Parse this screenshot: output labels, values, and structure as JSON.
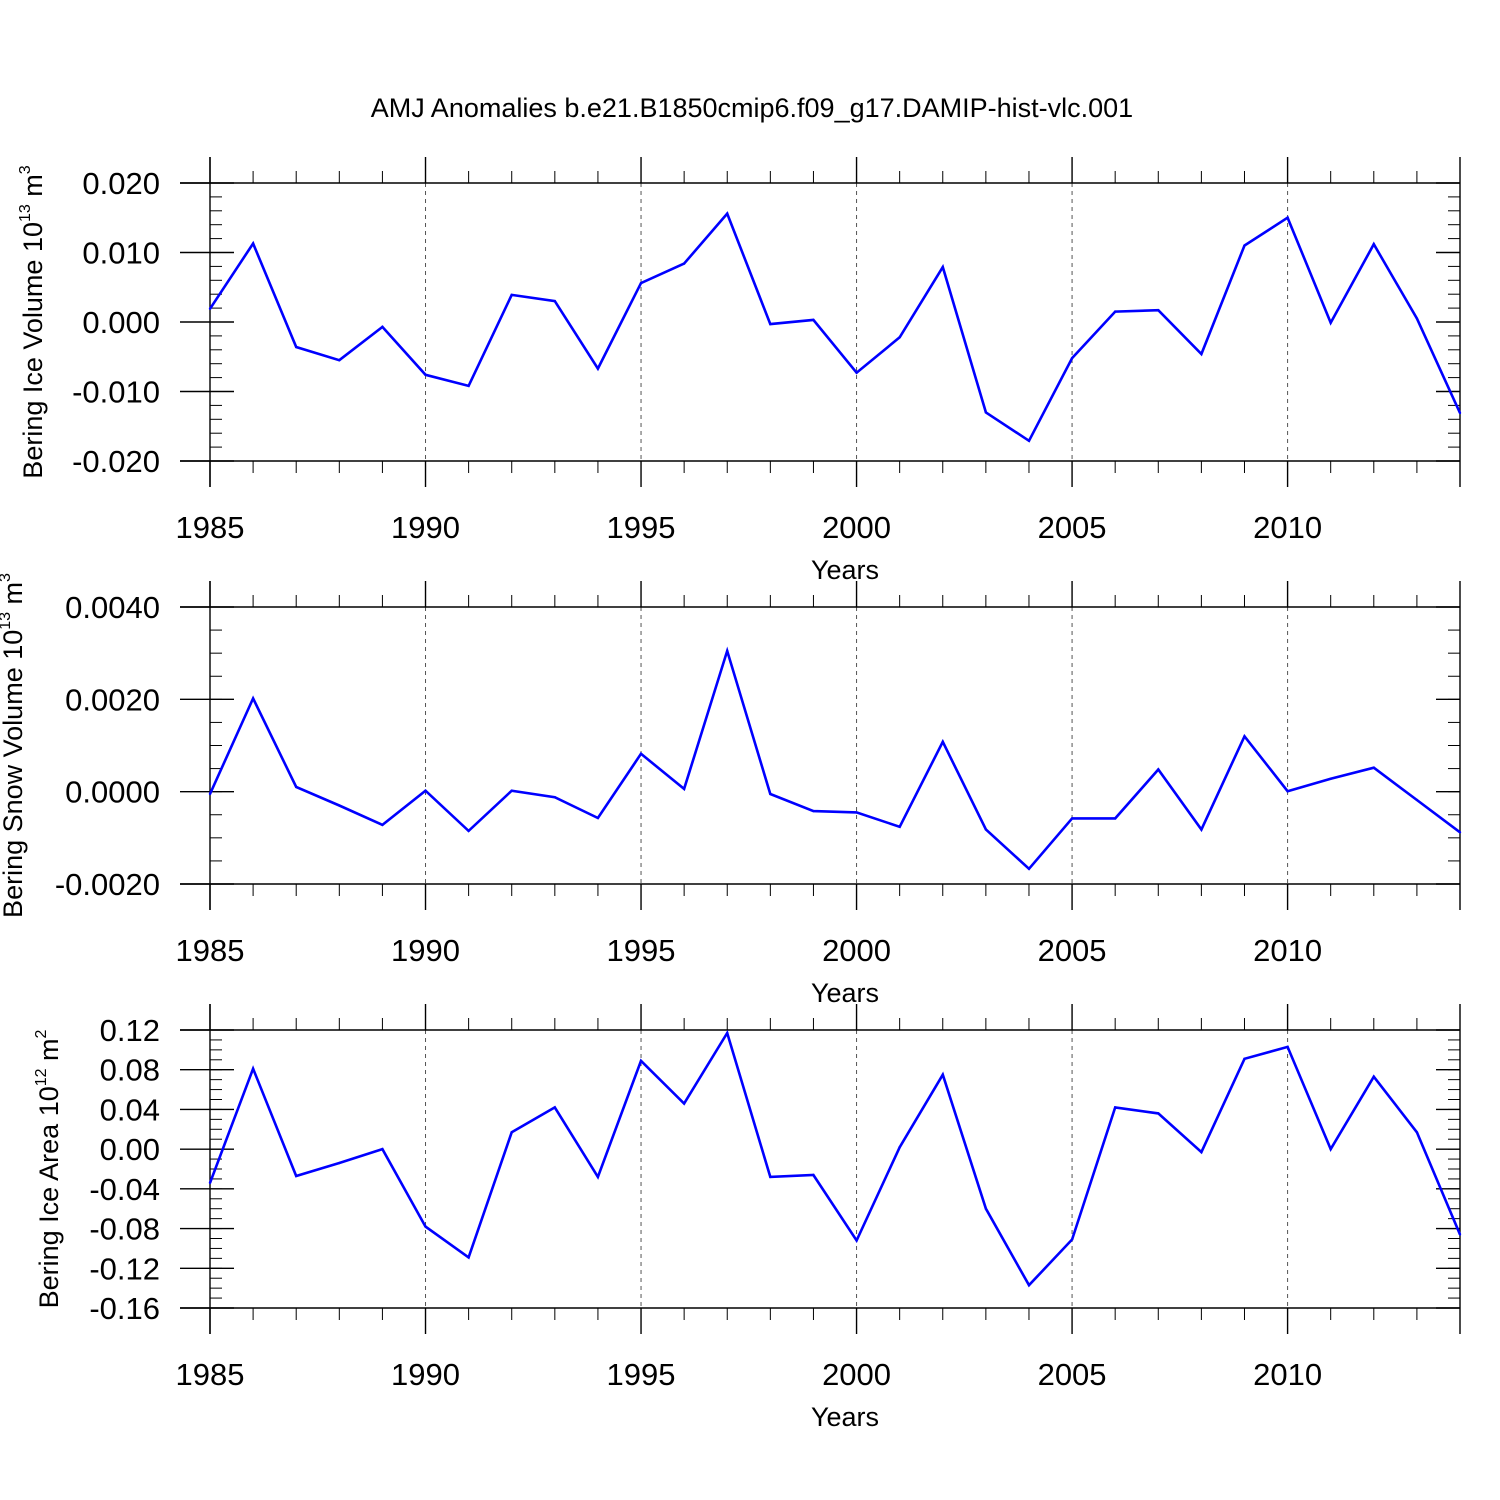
{
  "title": "AMJ Anomalies b.e21.B1850cmip6.f09_g17.DAMIP-hist-vlc.001",
  "colors": {
    "line": "#0000ff",
    "axis": "#000000",
    "grid": "#555555"
  },
  "chart_data": [
    {
      "type": "line",
      "name": "ice-volume",
      "ylabel": {
        "text": "Bering Ice Volume 10",
        "exp": "13",
        "unit": " m",
        "unit_exp": "3"
      },
      "xlabel": "Years",
      "xlim": [
        1985,
        2014
      ],
      "ylim": [
        -0.02,
        0.02
      ],
      "yticks": [
        {
          "v": 0.02,
          "label": "0.020"
        },
        {
          "v": 0.01,
          "label": "0.010"
        },
        {
          "v": 0.0,
          "label": "0.000"
        },
        {
          "v": -0.01,
          "label": "-0.010"
        },
        {
          "v": -0.02,
          "label": "-0.020"
        }
      ],
      "y_minor_step": 0.002,
      "xticks": [
        1985,
        1990,
        1995,
        2000,
        2005,
        2010
      ],
      "x": [
        1985,
        1986,
        1987,
        1988,
        1989,
        1990,
        1991,
        1992,
        1993,
        1994,
        1995,
        1996,
        1997,
        1998,
        1999,
        2000,
        2001,
        2002,
        2003,
        2004,
        2005,
        2006,
        2007,
        2008,
        2009,
        2010,
        2011,
        2012,
        2013,
        2014
      ],
      "values": [
        0.0019,
        0.0113,
        -0.0036,
        -0.0055,
        -0.0007,
        -0.0076,
        -0.0092,
        0.0039,
        0.003,
        -0.0067,
        0.0056,
        0.0084,
        0.0156,
        -0.0003,
        0.0003,
        -0.0073,
        -0.0022,
        0.0079,
        -0.013,
        -0.0171,
        -0.0052,
        0.0015,
        0.0017,
        -0.0046,
        0.011,
        0.015,
        -0.0001,
        0.0112,
        0.0005,
        -0.0131
      ]
    },
    {
      "type": "line",
      "name": "snow-volume",
      "ylabel": {
        "text": "Bering Snow Volume 10",
        "exp": "13",
        "unit": " m",
        "unit_exp": "3"
      },
      "xlabel": "Years",
      "xlim": [
        1985,
        2014
      ],
      "ylim": [
        -0.002,
        0.004
      ],
      "yticks": [
        {
          "v": 0.004,
          "label": "0.0040"
        },
        {
          "v": 0.002,
          "label": "0.0020"
        },
        {
          "v": 0.0,
          "label": "0.0000"
        },
        {
          "v": -0.002,
          "label": "-0.0020"
        }
      ],
      "y_minor_step": 0.0005,
      "xticks": [
        1985,
        1990,
        1995,
        2000,
        2005,
        2010
      ],
      "x": [
        1985,
        1986,
        1987,
        1988,
        1989,
        1990,
        1991,
        1992,
        1993,
        1994,
        1995,
        1996,
        1997,
        1998,
        1999,
        2000,
        2001,
        2002,
        2003,
        2004,
        2005,
        2006,
        2007,
        2008,
        2009,
        2010,
        2011,
        2012,
        2013,
        2014
      ],
      "values": [
        -5e-05,
        0.00202,
        0.0001,
        -0.0003,
        -0.00072,
        2e-05,
        -0.00085,
        2e-05,
        -0.00012,
        -0.00057,
        0.00082,
        6e-05,
        0.00305,
        -5e-05,
        -0.00042,
        -0.00045,
        -0.00076,
        0.00108,
        -0.00082,
        -0.00167,
        -0.00058,
        -0.00058,
        0.00048,
        -0.00082,
        0.0012,
        1e-05,
        0.00028,
        0.00052,
        -0.00018,
        -0.00088
      ]
    },
    {
      "type": "line",
      "name": "ice-area",
      "ylabel": {
        "text": "Bering Ice Area 10",
        "exp": "12",
        "unit": " m",
        "unit_exp": "2"
      },
      "xlabel": "Years",
      "xlim": [
        1985,
        2014
      ],
      "ylim": [
        -0.16,
        0.12
      ],
      "yticks": [
        {
          "v": 0.12,
          "label": "0.12"
        },
        {
          "v": 0.08,
          "label": "0.08"
        },
        {
          "v": 0.04,
          "label": "0.04"
        },
        {
          "v": 0.0,
          "label": "0.00"
        },
        {
          "v": -0.04,
          "label": "-0.04"
        },
        {
          "v": -0.08,
          "label": "-0.08"
        },
        {
          "v": -0.12,
          "label": "-0.12"
        },
        {
          "v": -0.16,
          "label": "-0.16"
        }
      ],
      "y_minor_step": 0.01,
      "xticks": [
        1985,
        1990,
        1995,
        2000,
        2005,
        2010
      ],
      "x": [
        1985,
        1986,
        1987,
        1988,
        1989,
        1990,
        1991,
        1992,
        1993,
        1994,
        1995,
        1996,
        1997,
        1998,
        1999,
        2000,
        2001,
        2002,
        2003,
        2004,
        2005,
        2006,
        2007,
        2008,
        2009,
        2010,
        2011,
        2012,
        2013,
        2014
      ],
      "values": [
        -0.034,
        0.081,
        -0.027,
        -0.014,
        0.0,
        -0.078,
        -0.109,
        0.017,
        0.042,
        -0.028,
        0.089,
        0.046,
        0.117,
        -0.028,
        -0.026,
        -0.092,
        0.002,
        0.075,
        -0.06,
        -0.137,
        -0.091,
        0.042,
        0.036,
        -0.003,
        0.091,
        0.103,
        0.0,
        0.073,
        0.017,
        -0.086
      ]
    }
  ]
}
